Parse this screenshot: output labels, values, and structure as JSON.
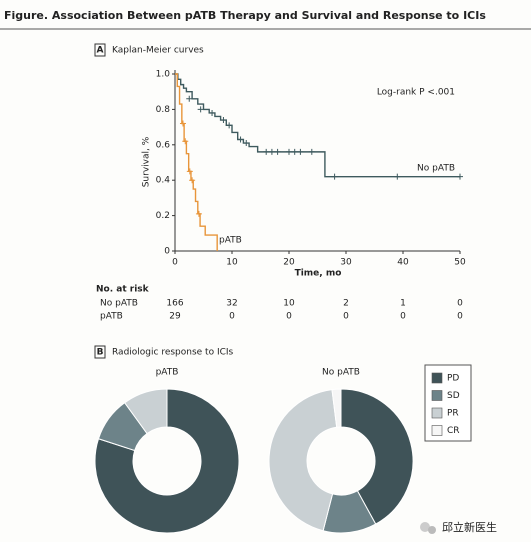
{
  "figure_title": "Figure. Association Between pATB Therapy and Survival and Response to ICIs",
  "watermark": "邱立新医生",
  "chart_data": [
    {
      "type": "step",
      "panel": "A",
      "title": "Kaplan-Meier curves",
      "x_label": "Time, mo",
      "y_label": "Survival, %",
      "annotation": "Log-rank P <.001",
      "xlim": [
        0,
        50
      ],
      "xticks": [
        0,
        10,
        20,
        30,
        40,
        50
      ],
      "ylim": [
        0,
        1
      ],
      "yticks": [
        0,
        0.2,
        0.4,
        0.6,
        0.8,
        {
          "value": 1,
          "label": "1.0"
        }
      ],
      "series": [
        {
          "name": "No pATB",
          "color": "#3e5a5e",
          "x": [
            0,
            0.5,
            1,
            1.5,
            2,
            3,
            4,
            5,
            6,
            7,
            8,
            9,
            10,
            11,
            12,
            13,
            14.5,
            26.3,
            50
          ],
          "values": [
            1.0,
            0.97,
            0.94,
            0.92,
            0.9,
            0.86,
            0.83,
            0.8,
            0.78,
            0.76,
            0.74,
            0.71,
            0.67,
            0.63,
            0.61,
            0.59,
            0.56,
            0.42,
            0.42
          ],
          "censored": {
            "x": [
              2.5,
              4.5,
              6.5,
              8.5,
              9.5,
              11.5,
              12.5,
              16,
              17,
              18,
              20,
              21,
              22,
              24,
              28,
              39,
              50
            ],
            "values": [
              0.86,
              0.8,
              0.78,
              0.74,
              0.71,
              0.63,
              0.61,
              0.56,
              0.56,
              0.56,
              0.56,
              0.56,
              0.56,
              0.56,
              0.42,
              0.42,
              0.42
            ]
          }
        },
        {
          "name": "pATB",
          "color": "#e8953a",
          "x": [
            0,
            0.4,
            0.8,
            1.2,
            1.6,
            2.0,
            2.4,
            2.8,
            3.2,
            3.6,
            4.0,
            4.4,
            5.3,
            7.4
          ],
          "values": [
            1.0,
            0.93,
            0.83,
            0.72,
            0.62,
            0.55,
            0.45,
            0.4,
            0.35,
            0.28,
            0.21,
            0.14,
            0.09,
            0
          ],
          "censored": {
            "x": [
              1.4,
              1.8,
              2.6,
              3.0,
              4.2
            ],
            "values": [
              0.72,
              0.62,
              0.45,
              0.4,
              0.21
            ]
          }
        }
      ],
      "risk_table": {
        "title": "No. at risk",
        "rows": [
          {
            "name": "No pATB",
            "values": [
              166,
              32,
              10,
              2,
              1,
              0
            ]
          },
          {
            "name": "pATB",
            "values": [
              29,
              0,
              0,
              0,
              0,
              0
            ]
          }
        ]
      }
    },
    {
      "type": "donut",
      "panel": "B",
      "title": "Radiologic response to ICIs",
      "categories": [
        "PD",
        "SD",
        "PR",
        "CR"
      ],
      "colors": [
        "#3f5358",
        "#6d8389",
        "#c9d0d3",
        "#f6f6f6"
      ],
      "series": [
        {
          "name": "pATB",
          "values": [
            80,
            10,
            10,
            0
          ]
        },
        {
          "name": "No pATB",
          "values": [
            42,
            12,
            44,
            2
          ]
        }
      ]
    }
  ]
}
